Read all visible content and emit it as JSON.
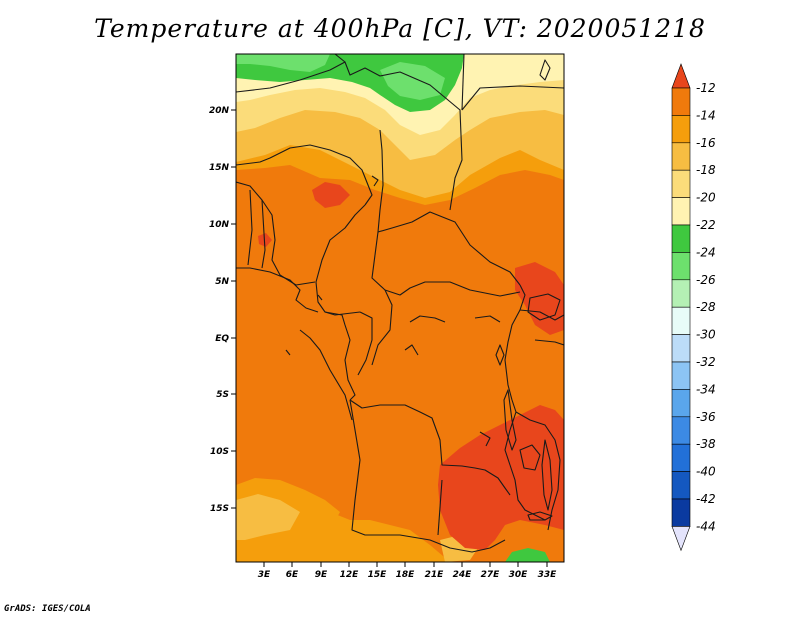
{
  "title": "Temperature at 400hPa [C], VT: 2020051218",
  "credit": "GrADS: IGES/COLA",
  "map": {
    "lat_labels": [
      "20N",
      "15N",
      "10N",
      "5N",
      "EQ",
      "5S",
      "10S",
      "15S"
    ],
    "lon_labels": [
      "3E",
      "6E",
      "9E",
      "12E",
      "15E",
      "18E",
      "21E",
      "24E",
      "27E",
      "30E",
      "33E"
    ]
  },
  "colorbar": {
    "labels": [
      "-12",
      "-14",
      "-16",
      "-18",
      "-20",
      "-22",
      "-24",
      "-26",
      "-28",
      "-30",
      "-32",
      "-34",
      "-36",
      "-38",
      "-40",
      "-42",
      "-44"
    ],
    "colors": [
      "#e8461c",
      "#f07a0c",
      "#f59e0c",
      "#f7bd42",
      "#fbdc7a",
      "#fff3b2",
      "#3fc83f",
      "#6de06d",
      "#b4f0b4",
      "#e8fcf8",
      "#bcdcf8",
      "#8cc4f4",
      "#5aa6ec",
      "#3c8ae4",
      "#2270d8",
      "#1458c0",
      "#0a3aa0",
      "#06107a"
    ],
    "top_color": "#e8461c",
    "bottom_color": "#e4e4fc"
  },
  "fields": {
    "c_m14": "#f07a0c",
    "c_m16": "#f59e0c",
    "c_m18": "#f7bd42",
    "c_m20": "#fbdc7a",
    "c_m22": "#fff3b2",
    "c_m24": "#3fc83f",
    "c_m26": "#6de06d",
    "c_m12": "#e8461c"
  }
}
